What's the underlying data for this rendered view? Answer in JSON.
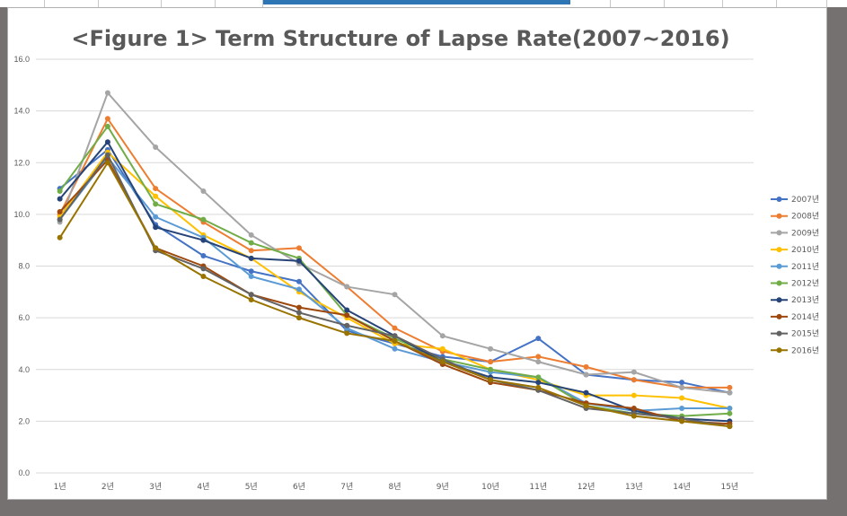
{
  "chart_data": {
    "type": "line",
    "title": "<Figure 1> Term Structure of Lapse Rate(2007~2016)",
    "xlabel": "",
    "ylabel": "",
    "ylim": [
      0,
      16
    ],
    "yticks": [
      "0.0",
      "2.0",
      "4.0",
      "6.0",
      "8.0",
      "10.0",
      "12.0",
      "14.0",
      "16.0"
    ],
    "categories": [
      "1년",
      "2년",
      "3년",
      "4년",
      "5년",
      "6년",
      "7년",
      "8년",
      "9년",
      "10년",
      "11년",
      "12년",
      "13년",
      "14년",
      "15년"
    ],
    "grid": true,
    "legend_position": "right",
    "series": [
      {
        "name": "2007년",
        "color": "#4472c4",
        "values": [
          11.0,
          12.5,
          9.6,
          8.4,
          7.8,
          7.4,
          5.5,
          5.0,
          4.5,
          4.3,
          5.2,
          3.8,
          3.6,
          3.5,
          3.1
        ]
      },
      {
        "name": "2008년",
        "color": "#ed7d31",
        "values": [
          10.0,
          13.7,
          11.0,
          9.7,
          8.6,
          8.7,
          7.2,
          5.6,
          4.7,
          4.3,
          4.5,
          4.1,
          3.6,
          3.3,
          3.3
        ]
      },
      {
        "name": "2009년",
        "color": "#a5a5a5",
        "values": [
          9.7,
          14.7,
          12.6,
          10.9,
          9.2,
          8.1,
          7.2,
          6.9,
          5.3,
          4.8,
          4.3,
          3.8,
          3.9,
          3.3,
          3.1
        ]
      },
      {
        "name": "2010년",
        "color": "#ffc000",
        "values": [
          9.9,
          12.4,
          10.7,
          9.2,
          8.3,
          7.0,
          6.0,
          5.0,
          4.8,
          4.0,
          3.6,
          3.0,
          3.0,
          2.9,
          2.5
        ]
      },
      {
        "name": "2011년",
        "color": "#5b9bd5",
        "values": [
          9.8,
          12.2,
          9.9,
          9.1,
          7.6,
          7.1,
          5.6,
          4.8,
          4.3,
          3.9,
          3.7,
          2.7,
          2.4,
          2.5,
          2.5
        ]
      },
      {
        "name": "2012년",
        "color": "#70ad47",
        "values": [
          10.9,
          13.4,
          10.4,
          9.8,
          8.9,
          8.3,
          6.1,
          5.2,
          4.4,
          4.0,
          3.7,
          2.6,
          2.3,
          2.2,
          2.3
        ]
      },
      {
        "name": "2013년",
        "color": "#264478",
        "values": [
          10.6,
          12.8,
          9.5,
          9.0,
          8.3,
          8.2,
          6.3,
          5.3,
          4.3,
          3.7,
          3.5,
          3.1,
          2.4,
          2.1,
          2.0
        ]
      },
      {
        "name": "2014년",
        "color": "#9e480e",
        "values": [
          10.1,
          12.1,
          8.7,
          8.0,
          6.9,
          6.4,
          6.1,
          5.1,
          4.2,
          3.5,
          3.2,
          2.7,
          2.5,
          2.0,
          1.9
        ]
      },
      {
        "name": "2015년",
        "color": "#636363",
        "values": [
          9.8,
          12.3,
          8.6,
          7.9,
          6.9,
          6.2,
          5.7,
          5.3,
          4.4,
          3.6,
          3.2,
          2.5,
          2.3,
          2.1,
          1.8
        ]
      },
      {
        "name": "2016년",
        "color": "#997300",
        "values": [
          9.1,
          12.0,
          8.7,
          7.6,
          6.7,
          6.0,
          5.4,
          5.1,
          4.3,
          3.6,
          3.3,
          2.6,
          2.2,
          2.0,
          1.8
        ]
      }
    ]
  }
}
